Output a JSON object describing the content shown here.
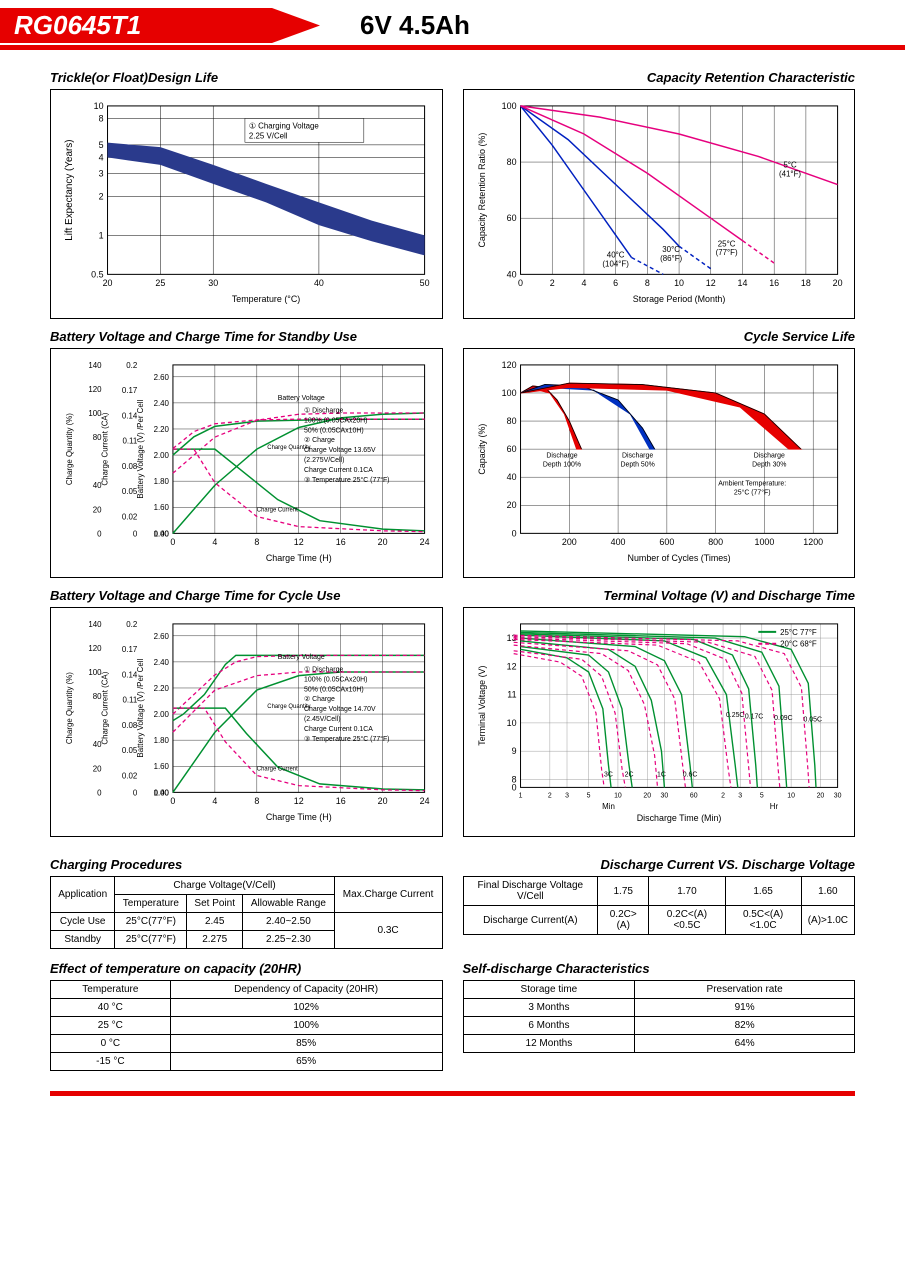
{
  "header": {
    "model": "RG0645T1",
    "spec": "6V  4.5Ah"
  },
  "charts": {
    "trickle": {
      "title": "Trickle(or Float)Design Life",
      "xlabel": "Temperature (°C)",
      "ylabel": "Lift Expectancy (Years)",
      "xticks": [
        20,
        25,
        30,
        40,
        50
      ],
      "yticks": [
        0.5,
        1,
        2,
        3,
        4,
        5,
        8,
        10
      ],
      "note": "① Charging Voltage 2.25 V/Cell",
      "band_color": "#2a3a8c",
      "grid_color": "#000",
      "band_upper": [
        [
          20,
          5.2
        ],
        [
          25,
          4.8
        ],
        [
          30,
          3.5
        ],
        [
          35,
          2.5
        ],
        [
          40,
          1.8
        ],
        [
          45,
          1.3
        ],
        [
          50,
          1.0
        ]
      ],
      "band_lower": [
        [
          20,
          4.0
        ],
        [
          25,
          3.5
        ],
        [
          30,
          2.5
        ],
        [
          35,
          1.8
        ],
        [
          40,
          1.2
        ],
        [
          45,
          0.9
        ],
        [
          50,
          0.7
        ]
      ]
    },
    "retention": {
      "title": "Capacity Retention Characteristic",
      "xlabel": "Storage Period (Month)",
      "ylabel": "Capacity Retention Ratio (%)",
      "xlim": [
        0,
        20
      ],
      "ylim": [
        40,
        100
      ],
      "xtick_step": 2,
      "ytick_step": 20,
      "curves": [
        {
          "label": "40°C (104°F)",
          "color": "#0020c0",
          "pts": [
            [
              0,
              100
            ],
            [
              2,
              86
            ],
            [
              4,
              70
            ],
            [
              6,
              54
            ],
            [
              7,
              46
            ]
          ],
          "dash": [
            [
              7,
              46
            ],
            [
              9,
              40
            ]
          ]
        },
        {
          "label": "30°C (86°F)",
          "color": "#0020c0",
          "pts": [
            [
              0,
              100
            ],
            [
              3,
              88
            ],
            [
              6,
              72
            ],
            [
              9,
              56
            ],
            [
              10,
              50
            ]
          ],
          "dash": [
            [
              10,
              50
            ],
            [
              12,
              42
            ]
          ]
        },
        {
          "label": "25°C (77°F)",
          "color": "#e6007e",
          "pts": [
            [
              0,
              100
            ],
            [
              4,
              90
            ],
            [
              8,
              76
            ],
            [
              12,
              60
            ],
            [
              14,
              52
            ]
          ],
          "dash": [
            [
              14,
              52
            ],
            [
              16,
              44
            ]
          ]
        },
        {
          "label": "5°C (41°F)",
          "color": "#e6007e",
          "pts": [
            [
              0,
              100
            ],
            [
              5,
              96
            ],
            [
              10,
              90
            ],
            [
              15,
              82
            ],
            [
              18,
              76
            ],
            [
              20,
              72
            ]
          ],
          "dash": []
        }
      ],
      "labels_pos": [
        [
          6,
          46,
          "40°C\n(104°F)"
        ],
        [
          9.5,
          48,
          "30°C\n(86°F)"
        ],
        [
          13,
          50,
          "25°C\n(77°F)"
        ],
        [
          17,
          78,
          "5°C\n(41°F)"
        ]
      ]
    },
    "standby": {
      "title": "Battery Voltage and Charge Time for Standby Use",
      "xlabel": "Charge Time (H)",
      "y1": "Charge Quantity (%)",
      "y2": "Charge Current (CA)",
      "y3": "Battery Voltage (V) /Per Cell",
      "xlim": [
        0,
        24
      ],
      "xticks": [
        0,
        4,
        8,
        12,
        16,
        20,
        24
      ],
      "y1ticks": [
        0,
        20,
        40,
        80,
        100,
        120,
        140
      ],
      "y2ticks": [
        0,
        0.02,
        0.05,
        0.08,
        0.11,
        0.14,
        0.17,
        0.2
      ],
      "y3ticks": [
        0,
        1.4,
        1.6,
        1.8,
        2.0,
        2.2,
        2.4,
        2.6
      ],
      "note": "① Discharge\n100% (0.05CAx20H)\n50% (0.05CAx10H)\n② Charge\nCharge Voltage 13.65V\n(2.275V/Cell)\nCharge Current 0.1CA\n③ Temperature 25°C (77°F)",
      "colors": {
        "solid": "#009030",
        "dash": "#e6007e"
      },
      "bv_solid": [
        [
          0,
          2.0
        ],
        [
          2,
          2.14
        ],
        [
          4,
          2.22
        ],
        [
          8,
          2.26
        ],
        [
          16,
          2.275
        ],
        [
          24,
          2.275
        ]
      ],
      "bv_dash": [
        [
          0,
          2.05
        ],
        [
          2,
          2.18
        ],
        [
          4,
          2.24
        ],
        [
          8,
          2.27
        ],
        [
          12,
          2.275
        ],
        [
          24,
          2.275
        ]
      ],
      "cq_solid": [
        [
          0,
          0
        ],
        [
          4,
          40
        ],
        [
          8,
          70
        ],
        [
          12,
          88
        ],
        [
          16,
          96
        ],
        [
          20,
          99
        ],
        [
          24,
          100
        ]
      ],
      "cq_dash": [
        [
          0,
          50
        ],
        [
          4,
          80
        ],
        [
          8,
          94
        ],
        [
          12,
          99
        ],
        [
          16,
          100
        ],
        [
          24,
          100
        ]
      ],
      "cc_solid": [
        [
          0,
          0.1
        ],
        [
          4,
          0.1
        ],
        [
          6,
          0.08
        ],
        [
          10,
          0.04
        ],
        [
          14,
          0.015
        ],
        [
          20,
          0.005
        ],
        [
          24,
          0.003
        ]
      ],
      "cc_dash": [
        [
          0,
          0.1
        ],
        [
          2,
          0.1
        ],
        [
          4,
          0.06
        ],
        [
          8,
          0.02
        ],
        [
          12,
          0.008
        ],
        [
          20,
          0.003
        ],
        [
          24,
          0.002
        ]
      ]
    },
    "cyclelife": {
      "title": "Cycle Service Life",
      "xlabel": "Number of Cycles (Times)",
      "ylabel": "Capacity (%)",
      "xlim": [
        0,
        1300
      ],
      "ylim": [
        0,
        120
      ],
      "xticks": [
        200,
        400,
        600,
        800,
        1000,
        1200
      ],
      "yticks": [
        0,
        20,
        40,
        60,
        80,
        100,
        120
      ],
      "note": "Ambient Temperature:\n25°C (77°F)",
      "bands": [
        {
          "label": "Discharge Depth 100%",
          "color": "#e60000",
          "upper": [
            [
              0,
              100
            ],
            [
              50,
              105
            ],
            [
              100,
              104
            ],
            [
              150,
              95
            ],
            [
              200,
              80
            ],
            [
              250,
              60
            ]
          ],
          "lower": [
            [
              0,
              100
            ],
            [
              50,
              103
            ],
            [
              120,
              100
            ],
            [
              180,
              85
            ],
            [
              230,
              60
            ]
          ]
        },
        {
          "label": "Discharge Depth 50%",
          "color": "#0030c0",
          "upper": [
            [
              0,
              100
            ],
            [
              100,
              106
            ],
            [
              250,
              105
            ],
            [
              400,
              95
            ],
            [
              500,
              75
            ],
            [
              550,
              60
            ]
          ],
          "lower": [
            [
              0,
              100
            ],
            [
              100,
              104
            ],
            [
              300,
              102
            ],
            [
              450,
              85
            ],
            [
              530,
              60
            ]
          ]
        },
        {
          "label": "Discharge Depth 30%",
          "color": "#e60000",
          "upper": [
            [
              0,
              100
            ],
            [
              200,
              107
            ],
            [
              500,
              106
            ],
            [
              800,
              100
            ],
            [
              1000,
              85
            ],
            [
              1150,
              60
            ]
          ],
          "lower": [
            [
              0,
              100
            ],
            [
              200,
              104
            ],
            [
              600,
              102
            ],
            [
              900,
              90
            ],
            [
              1100,
              60
            ]
          ]
        }
      ]
    },
    "cycleuse": {
      "title": "Battery Voltage and Charge Time for Cycle Use",
      "xlabel": "Charge Time (H)",
      "xlim": [
        0,
        24
      ],
      "xticks": [
        0,
        4,
        8,
        12,
        16,
        20,
        24
      ],
      "y1ticks": [
        0,
        20,
        40,
        80,
        100,
        120,
        140
      ],
      "y2ticks": [
        0,
        0.02,
        0.05,
        0.08,
        0.11,
        0.14,
        0.17,
        0.2
      ],
      "y3ticks": [
        0,
        1.4,
        1.6,
        1.8,
        2.0,
        2.2,
        2.4,
        2.6
      ],
      "note": "① Discharge\n100% (0.05CAx20H)\n50% (0.05CAx10H)\n② Charge\nCharge Voltage 14.70V\n(2.45V/Cell)\nCharge Current 0.1CA\n③ Temperature 25°C (77°F)",
      "colors": {
        "solid": "#009030",
        "dash": "#e6007e"
      },
      "bv_solid": [
        [
          0,
          1.95
        ],
        [
          1,
          2.0
        ],
        [
          3,
          2.15
        ],
        [
          5,
          2.38
        ],
        [
          6,
          2.45
        ],
        [
          24,
          2.45
        ]
      ],
      "bv_dash": [
        [
          0,
          2.0
        ],
        [
          2,
          2.15
        ],
        [
          4,
          2.3
        ],
        [
          6,
          2.4
        ],
        [
          8,
          2.44
        ],
        [
          12,
          2.45
        ],
        [
          24,
          2.45
        ]
      ],
      "cq_solid": [
        [
          0,
          0
        ],
        [
          4,
          50
        ],
        [
          8,
          85
        ],
        [
          12,
          97
        ],
        [
          16,
          100
        ],
        [
          24,
          100
        ]
      ],
      "cq_dash": [
        [
          0,
          50
        ],
        [
          4,
          85
        ],
        [
          8,
          97
        ],
        [
          12,
          100
        ],
        [
          24,
          100
        ]
      ],
      "cc_solid": [
        [
          0,
          0.1
        ],
        [
          5,
          0.1
        ],
        [
          7,
          0.07
        ],
        [
          10,
          0.03
        ],
        [
          14,
          0.01
        ],
        [
          20,
          0.004
        ],
        [
          24,
          0.003
        ]
      ],
      "cc_dash": [
        [
          0,
          0.1
        ],
        [
          3,
          0.1
        ],
        [
          5,
          0.06
        ],
        [
          8,
          0.02
        ],
        [
          12,
          0.008
        ],
        [
          20,
          0.003
        ],
        [
          24,
          0.002
        ]
      ]
    },
    "terminal": {
      "title": "Terminal Voltage (V) and Discharge Time",
      "xlabel": "Discharge Time (Min)",
      "ylabel": "Terminal Voltage (V)",
      "ylim": [
        7,
        13.5
      ],
      "yticks": [
        0,
        8,
        9,
        10,
        11,
        12,
        13
      ],
      "legend": [
        {
          "label": "25°C 77°F",
          "color": "#009030"
        },
        {
          "label": "20°C 68°F",
          "color": "#e6007e"
        }
      ],
      "annotations": [
        "3C",
        "2C",
        "1C",
        "0.6C",
        "0.25C",
        "0.17C",
        "0.09C",
        "0.05C"
      ],
      "curves25": [
        [
          [
            1,
            12.6
          ],
          [
            3,
            12.3
          ],
          [
            5,
            11.8
          ],
          [
            7,
            10.5
          ],
          [
            8,
            8.5
          ],
          [
            8.5,
            7.5
          ]
        ],
        [
          [
            1,
            12.7
          ],
          [
            5,
            12.4
          ],
          [
            8,
            11.8
          ],
          [
            11,
            10.5
          ],
          [
            13,
            8.5
          ],
          [
            14,
            7.5
          ]
        ],
        [
          [
            1,
            12.9
          ],
          [
            8,
            12.6
          ],
          [
            15,
            12.0
          ],
          [
            22,
            10.8
          ],
          [
            28,
            9.0
          ],
          [
            30,
            7.5
          ]
        ],
        [
          [
            1,
            13.0
          ],
          [
            15,
            12.7
          ],
          [
            30,
            12.2
          ],
          [
            45,
            11.0
          ],
          [
            55,
            8.5
          ],
          [
            58,
            7.5
          ]
        ],
        [
          [
            1,
            13.1
          ],
          [
            30,
            12.9
          ],
          [
            80,
            12.3
          ],
          [
            130,
            11.0
          ],
          [
            160,
            8.5
          ],
          [
            170,
            7.5
          ]
        ],
        [
          [
            1,
            13.15
          ],
          [
            60,
            12.95
          ],
          [
            150,
            12.4
          ],
          [
            220,
            11.2
          ],
          [
            260,
            8.5
          ],
          [
            270,
            7.5
          ]
        ],
        [
          [
            1,
            13.2
          ],
          [
            100,
            13.0
          ],
          [
            300,
            12.5
          ],
          [
            450,
            11.3
          ],
          [
            520,
            8.5
          ],
          [
            540,
            7.5
          ]
        ],
        [
          [
            1,
            13.25
          ],
          [
            200,
            13.05
          ],
          [
            600,
            12.6
          ],
          [
            900,
            11.4
          ],
          [
            1050,
            8.5
          ],
          [
            1080,
            7.5
          ]
        ]
      ],
      "xlog_ticks": [
        [
          1,
          "1"
        ],
        [
          2,
          "2"
        ],
        [
          3,
          "3"
        ],
        [
          5,
          "5"
        ],
        [
          10,
          "10"
        ],
        [
          20,
          "20"
        ],
        [
          30,
          "30"
        ],
        [
          60,
          "60"
        ],
        [
          120,
          "2"
        ],
        [
          180,
          "3"
        ],
        [
          300,
          "5"
        ],
        [
          600,
          "10"
        ],
        [
          1200,
          "20"
        ],
        [
          1800,
          "30"
        ]
      ]
    }
  },
  "tables": {
    "charging": {
      "title": "Charging Procedures",
      "headers": [
        "Application",
        "Temperature",
        "Set Point",
        "Allowable Range",
        "Max.Charge Current"
      ],
      "header_top": "Charge Voltage(V/Cell)",
      "rows": [
        [
          "Cycle Use",
          "25°C(77°F)",
          "2.45",
          "2.40~2.50",
          "0.3C"
        ],
        [
          "Standby",
          "25°C(77°F)",
          "2.275",
          "2.25~2.30",
          ""
        ]
      ]
    },
    "discharge": {
      "title": "Discharge Current VS. Discharge Voltage",
      "rows": [
        [
          "Final Discharge Voltage V/Cell",
          "1.75",
          "1.70",
          "1.65",
          "1.60"
        ],
        [
          "Discharge Current(A)",
          "0.2C>(A)",
          "0.2C<(A)<0.5C",
          "0.5C<(A)<1.0C",
          "(A)>1.0C"
        ]
      ]
    },
    "tempcap": {
      "title": "Effect of temperature on capacity (20HR)",
      "headers": [
        "Temperature",
        "Dependency of Capacity (20HR)"
      ],
      "rows": [
        [
          "40 °C",
          "102%"
        ],
        [
          "25 °C",
          "100%"
        ],
        [
          "0 °C",
          "85%"
        ],
        [
          "-15 °C",
          "65%"
        ]
      ]
    },
    "selfdisch": {
      "title": "Self-discharge Characteristics",
      "headers": [
        "Storage time",
        "Preservation rate"
      ],
      "rows": [
        [
          "3 Months",
          "91%"
        ],
        [
          "6 Months",
          "82%"
        ],
        [
          "12 Months",
          "64%"
        ]
      ]
    }
  }
}
